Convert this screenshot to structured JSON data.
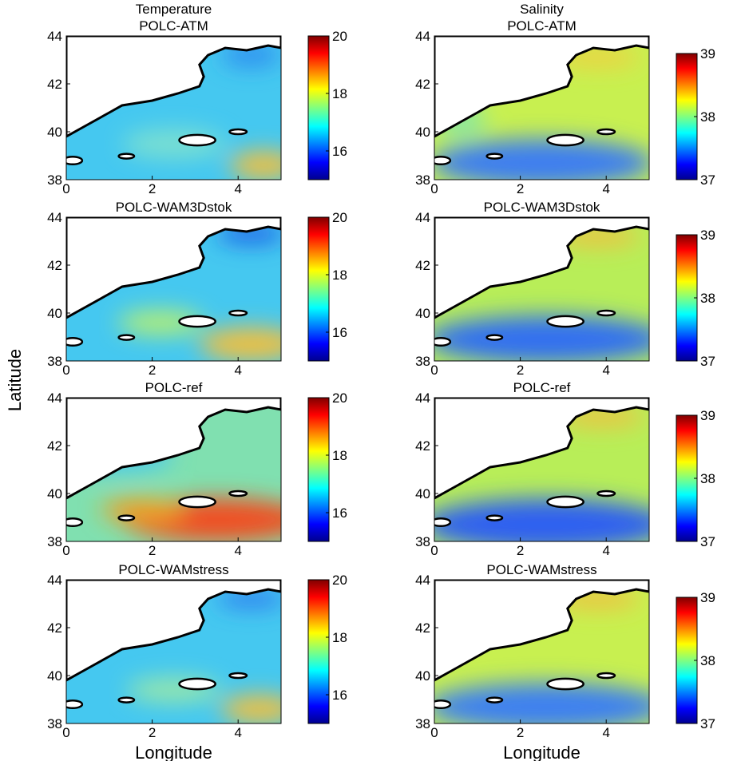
{
  "ylabel": "Latitude",
  "chart_data": [
    {
      "type": "map",
      "suptitle": "Temperature",
      "title": "POLC-ATM",
      "xlim": [
        0,
        5
      ],
      "ylim": [
        38,
        44
      ],
      "xticks": [
        0,
        2,
        4
      ],
      "yticks": [
        38,
        40,
        42,
        44
      ],
      "colorbar": {
        "lim": [
          15,
          20
        ],
        "ticks": [
          16,
          18,
          20
        ]
      }
    },
    {
      "type": "map",
      "suptitle": "Salinity",
      "title": "POLC-ATM",
      "xlim": [
        0,
        5
      ],
      "ylim": [
        38,
        44
      ],
      "xticks": [
        0,
        2,
        4
      ],
      "yticks": [
        38,
        40,
        42,
        44
      ],
      "colorbar": {
        "lim": [
          37,
          39
        ],
        "ticks": [
          37,
          38,
          39
        ]
      }
    },
    {
      "type": "map",
      "title": "POLC-WAM3Dstok",
      "xlim": [
        0,
        5
      ],
      "ylim": [
        38,
        44
      ],
      "xticks": [
        0,
        2,
        4
      ],
      "yticks": [
        38,
        40,
        42,
        44
      ],
      "colorbar": {
        "lim": [
          15,
          20
        ],
        "ticks": [
          16,
          18,
          20
        ]
      }
    },
    {
      "type": "map",
      "title": "POLC-WAM3Dstok",
      "xlim": [
        0,
        5
      ],
      "ylim": [
        38,
        44
      ],
      "xticks": [
        0,
        2,
        4
      ],
      "yticks": [
        38,
        40,
        42,
        44
      ],
      "colorbar": {
        "lim": [
          37,
          39
        ],
        "ticks": [
          37,
          38,
          39
        ]
      }
    },
    {
      "type": "map",
      "title": "POLC-ref",
      "xlim": [
        0,
        5
      ],
      "ylim": [
        38,
        44
      ],
      "xticks": [
        0,
        2,
        4
      ],
      "yticks": [
        38,
        40,
        42,
        44
      ],
      "colorbar": {
        "lim": [
          15,
          20
        ],
        "ticks": [
          16,
          18,
          20
        ]
      }
    },
    {
      "type": "map",
      "title": "POLC-ref",
      "xlim": [
        0,
        5
      ],
      "ylim": [
        38,
        44
      ],
      "xticks": [
        0,
        2,
        4
      ],
      "yticks": [
        38,
        40,
        42,
        44
      ],
      "colorbar": {
        "lim": [
          37,
          39
        ],
        "ticks": [
          37,
          38,
          39
        ]
      }
    },
    {
      "type": "map",
      "title": "POLC-WAMstress",
      "xlabel": "Longitude",
      "xlim": [
        0,
        5
      ],
      "ylim": [
        38,
        44
      ],
      "xticks": [
        0,
        2,
        4
      ],
      "yticks": [
        38,
        40,
        42,
        44
      ],
      "colorbar": {
        "lim": [
          15,
          20
        ],
        "ticks": [
          16,
          18,
          20
        ]
      }
    },
    {
      "type": "map",
      "title": "POLC-WAMstress",
      "xlabel": "Longitude",
      "xlim": [
        0,
        5
      ],
      "ylim": [
        38,
        44
      ],
      "xticks": [
        0,
        2,
        4
      ],
      "yticks": [
        38,
        40,
        42,
        44
      ],
      "colorbar": {
        "lim": [
          37,
          39
        ],
        "ticks": [
          37,
          38,
          39
        ]
      }
    }
  ]
}
